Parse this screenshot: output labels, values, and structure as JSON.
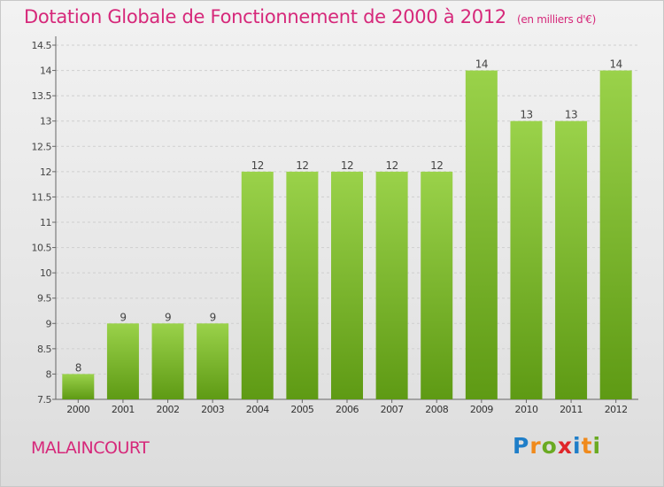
{
  "header": {
    "title": "Dotation Globale de Fonctionnement de 2000 à 2012",
    "unit": "(en milliers d'€)"
  },
  "footer": {
    "place": "MALAINCOURT",
    "logo": [
      "P",
      "r",
      "o",
      "x",
      "i",
      "t",
      "i"
    ],
    "logo_colors": [
      "#1f7ec8",
      "#f08a1c",
      "#6aaa22",
      "#e0262a",
      "#1f7ec8",
      "#f08a1c",
      "#6aaa22"
    ]
  },
  "chart_data": {
    "type": "bar",
    "categories": [
      "2000",
      "2001",
      "2002",
      "2003",
      "2004",
      "2005",
      "2006",
      "2007",
      "2008",
      "2009",
      "2010",
      "2011",
      "2012"
    ],
    "values": [
      8,
      9,
      9,
      9,
      12,
      12,
      12,
      12,
      12,
      14,
      13,
      13,
      14
    ],
    "data_labels": [
      "8",
      "9",
      "9",
      "9",
      "12",
      "12",
      "12",
      "12",
      "12",
      "14",
      "13",
      "13",
      "14"
    ],
    "ylim": [
      7.5,
      14.5
    ],
    "yticks": [
      "7.5",
      "8",
      "8.5",
      "9",
      "9.5",
      "10",
      "10.5",
      "11",
      "11.5",
      "12",
      "12.5",
      "13",
      "13.5",
      "14",
      "14.5"
    ],
    "grid": true,
    "bar_color_top": "#9ad24a",
    "bar_color_bottom": "#5e9a14"
  }
}
